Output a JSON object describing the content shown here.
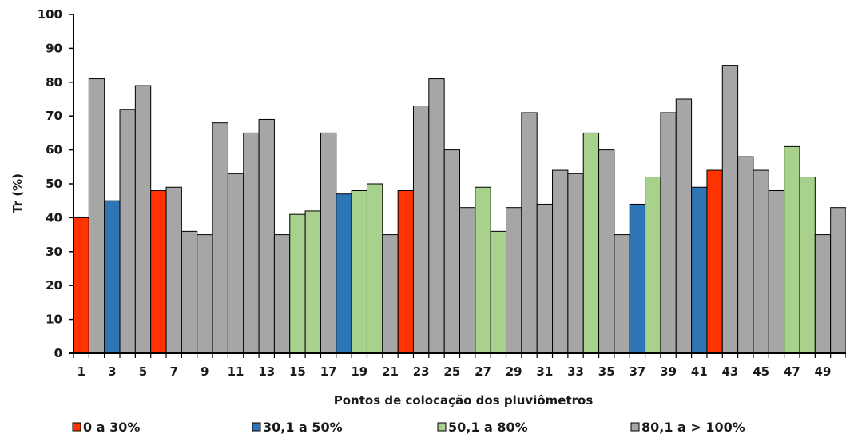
{
  "chart_data": {
    "type": "bar",
    "title": "",
    "xlabel": "Pontos de colocação dos pluviômetros",
    "ylabel": "Tr (%)",
    "ylim": [
      0,
      100
    ],
    "yticks": [
      "0",
      "10",
      "20",
      "30",
      "40",
      "50",
      "60",
      "70",
      "80",
      "90",
      "100"
    ],
    "xtick_labels": [
      "1",
      "3",
      "5",
      "7",
      "9",
      "11",
      "13",
      "15",
      "17",
      "19",
      "21",
      "23",
      "25",
      "27",
      "29",
      "31",
      "33",
      "35",
      "37",
      "39",
      "41",
      "43",
      "45",
      "47",
      "49"
    ],
    "grid": false,
    "legend_position": "bottom",
    "categories": [
      1,
      2,
      3,
      4,
      5,
      6,
      7,
      8,
      9,
      10,
      11,
      12,
      13,
      14,
      15,
      16,
      17,
      18,
      19,
      20,
      21,
      22,
      23,
      24,
      25,
      26,
      27,
      28,
      29,
      30,
      31,
      32,
      33,
      34,
      35,
      36,
      37,
      38,
      39,
      40,
      41,
      42,
      43,
      44,
      45,
      46,
      47,
      48,
      49,
      50
    ],
    "values": [
      40,
      81,
      45,
      72,
      79,
      48,
      49,
      36,
      35,
      68,
      53,
      65,
      69,
      35,
      41,
      42,
      65,
      47,
      48,
      50,
      35,
      48,
      73,
      81,
      60,
      43,
      49,
      36,
      43,
      71,
      44,
      54,
      53,
      65,
      60,
      35,
      44,
      52,
      71,
      75,
      49,
      54,
      85,
      58,
      54,
      48,
      61,
      52,
      35,
      43
    ],
    "value_class": [
      0,
      3,
      1,
      3,
      3,
      0,
      3,
      3,
      3,
      3,
      3,
      3,
      3,
      3,
      2,
      2,
      3,
      1,
      2,
      2,
      3,
      0,
      3,
      3,
      3,
      3,
      2,
      2,
      3,
      3,
      3,
      3,
      3,
      2,
      3,
      3,
      1,
      2,
      3,
      3,
      1,
      0,
      3,
      3,
      3,
      3,
      2,
      2,
      3,
      3
    ],
    "legend": [
      {
        "label": "0 a 30%",
        "color": "#ff3300"
      },
      {
        "label": "30,1 a 50%",
        "color": "#2e75b6"
      },
      {
        "label": "50,1 a 80%",
        "color": "#a9d18e"
      },
      {
        "label": "80,1 a > 100%",
        "color": "#a6a6a6"
      }
    ]
  }
}
